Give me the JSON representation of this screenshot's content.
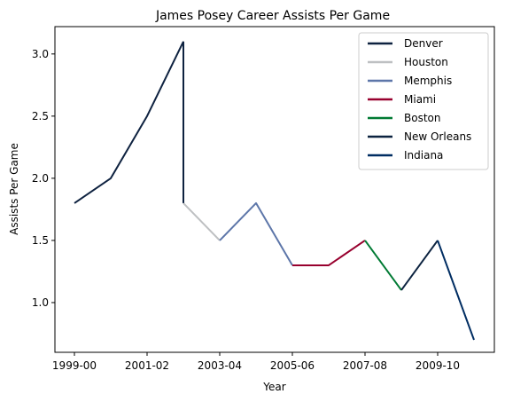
{
  "chart_data": {
    "type": "line",
    "title": "James Posey Career Assists Per Game",
    "xlabel": "Year",
    "ylabel": "Assists Per Game",
    "x_categories": [
      "1999-00",
      "2000-01",
      "2001-02",
      "2002-03",
      "2003-04",
      "2004-05",
      "2005-06",
      "2006-07",
      "2007-08",
      "2008-09",
      "2009-10",
      "2010-11"
    ],
    "x_tick_labels": [
      "1999-00",
      "2001-02",
      "2003-04",
      "2005-06",
      "2007-08",
      "2009-10"
    ],
    "ylim": [
      0.6,
      3.22
    ],
    "y_ticks": [
      1.0,
      1.5,
      2.0,
      2.5,
      3.0
    ],
    "y_tick_labels": [
      "1.0",
      "1.5",
      "2.0",
      "2.5",
      "3.0"
    ],
    "grid": false,
    "legend_position": "top-right",
    "series": [
      {
        "name": "Denver",
        "color": "#0E2240",
        "points": [
          [
            "1999-00",
            1.8
          ],
          [
            "2000-01",
            2.0
          ],
          [
            "2001-02",
            2.5
          ],
          [
            "2002-03",
            3.1
          ]
        ]
      },
      {
        "name": "Houston",
        "color": "#BEC0C2",
        "points": [
          [
            "2002-03",
            1.8
          ],
          [
            "2003-04",
            1.5
          ]
        ]
      },
      {
        "name": "Memphis",
        "color": "#5D76A9",
        "points": [
          [
            "2003-04",
            1.5
          ],
          [
            "2004-05",
            1.8
          ],
          [
            "2005-06",
            1.3
          ]
        ]
      },
      {
        "name": "Miami",
        "color": "#98002E",
        "points": [
          [
            "2005-06",
            1.3
          ],
          [
            "2006-07",
            1.3
          ],
          [
            "2007-08",
            1.5
          ]
        ]
      },
      {
        "name": "Boston",
        "color": "#007A33",
        "points": [
          [
            "2007-08",
            1.5
          ],
          [
            "2008-09",
            1.1
          ]
        ]
      },
      {
        "name": "New Orleans",
        "color": "#0C2340",
        "points": [
          [
            "2008-09",
            1.1
          ],
          [
            "2009-10",
            1.5
          ]
        ]
      },
      {
        "name": "Indiana",
        "color": "#002D62",
        "points": [
          [
            "2009-10",
            1.5
          ],
          [
            "2010-11",
            0.7
          ]
        ]
      }
    ],
    "connector": {
      "color": "#0E2240",
      "points": [
        [
          "2002-03",
          3.1
        ],
        [
          "2002-03",
          1.8
        ]
      ]
    }
  }
}
